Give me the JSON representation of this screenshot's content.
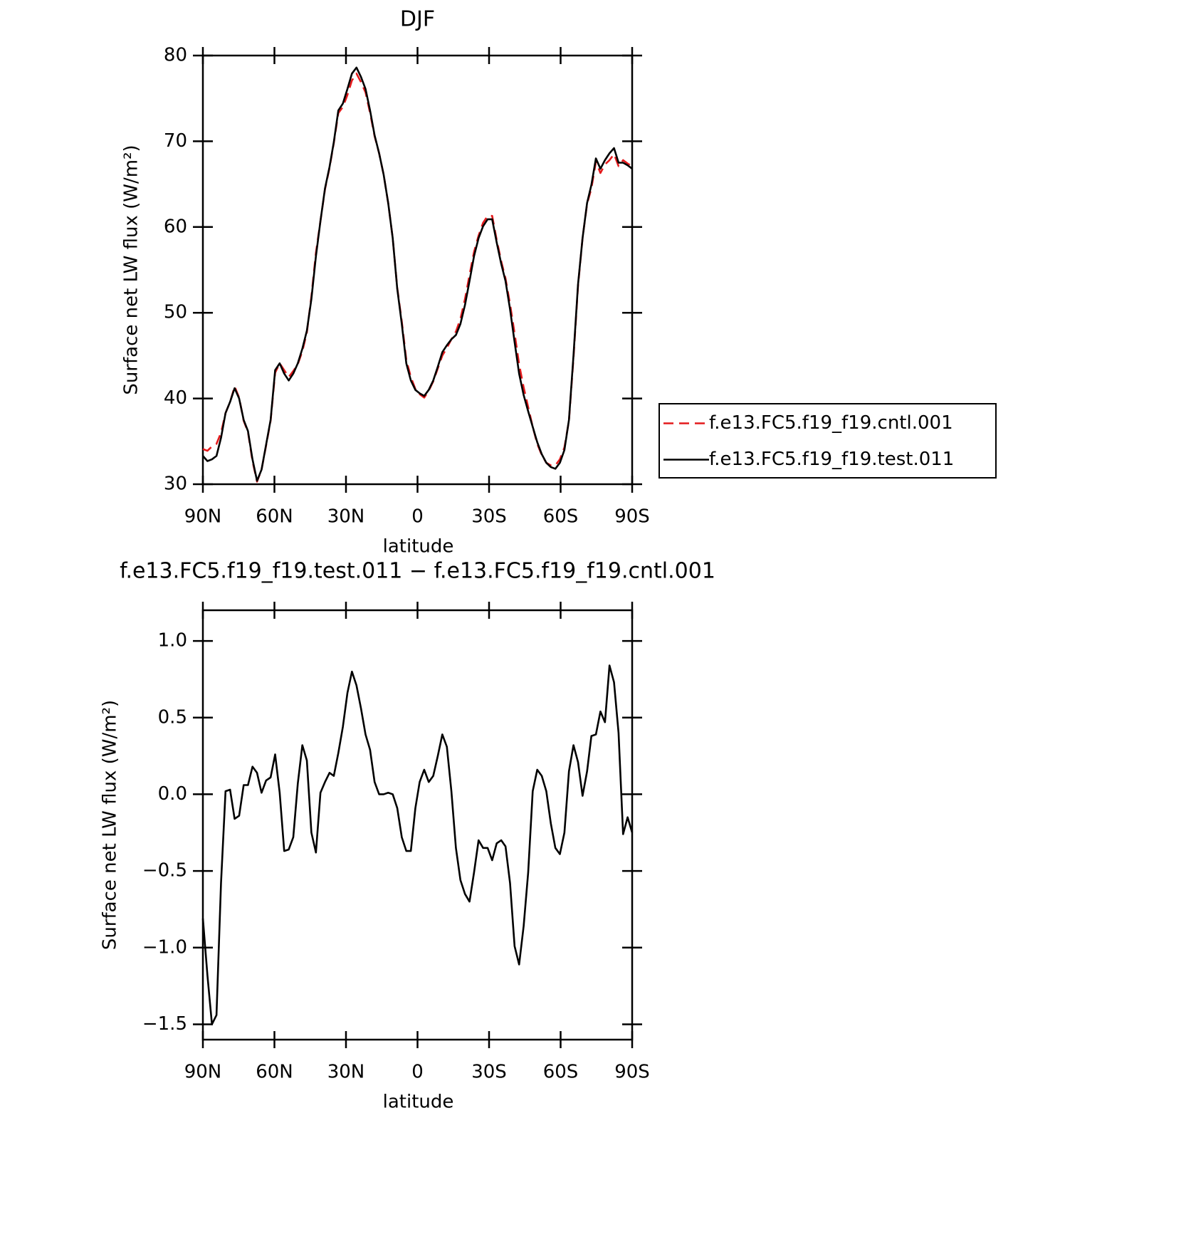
{
  "chart_data": [
    {
      "type": "line",
      "title": "DJF",
      "xlabel": "latitude",
      "ylabel": "Surface net LW flux (W/m²)",
      "x": [
        90.0,
        88.1,
        86.2,
        84.3,
        82.4,
        80.5,
        78.6,
        76.7,
        74.8,
        72.9,
        71.1,
        69.2,
        67.3,
        65.4,
        63.5,
        61.6,
        59.7,
        57.8,
        55.9,
        54.0,
        52.1,
        50.2,
        48.3,
        46.4,
        44.5,
        42.6,
        40.7,
        38.8,
        36.9,
        35.1,
        33.2,
        31.3,
        29.4,
        27.5,
        25.6,
        23.7,
        21.8,
        19.9,
        18.0,
        16.1,
        14.2,
        12.3,
        10.4,
        8.5,
        6.6,
        4.7,
        2.8,
        0.9,
        -0.9,
        -2.8,
        -4.7,
        -6.6,
        -8.5,
        -10.4,
        -12.3,
        -14.2,
        -16.1,
        -18.0,
        -19.9,
        -21.8,
        -23.7,
        -25.6,
        -27.5,
        -29.4,
        -31.3,
        -33.2,
        -35.1,
        -36.9,
        -38.8,
        -40.7,
        -42.6,
        -44.5,
        -46.4,
        -48.3,
        -50.2,
        -52.1,
        -54.0,
        -55.9,
        -57.8,
        -59.7,
        -61.6,
        -63.5,
        -65.4,
        -67.3,
        -69.2,
        -71.1,
        -72.9,
        -74.8,
        -76.7,
        -78.6,
        -80.5,
        -82.4,
        -84.3,
        -86.2,
        -88.1,
        -90.0
      ],
      "series": [
        {
          "name": "f.e13.FC5.f19_f19.cntl.001",
          "color": "#e41a1c",
          "style": "dashed",
          "values": [
            34.1,
            33.9,
            34.4,
            34.7,
            36.0,
            38.3,
            39.6,
            41.4,
            40.1,
            37.4,
            36.1,
            32.7,
            30.3,
            31.7,
            34.5,
            37.4,
            43.0,
            44.1,
            43.3,
            42.5,
            43.2,
            44.0,
            45.5,
            47.7,
            51.9,
            57.0,
            60.7,
            64.4,
            66.9,
            69.8,
            73.3,
            74.0,
            75.4,
            77.1,
            77.9,
            76.9,
            75.7,
            73.3,
            70.6,
            68.6,
            66.1,
            62.8,
            58.7,
            52.9,
            49.0,
            44.5,
            42.5,
            41.1,
            40.5,
            40.1,
            40.9,
            42.0,
            43.5,
            45.0,
            45.9,
            46.9,
            47.8,
            49.3,
            51.6,
            54.4,
            57.1,
            59.0,
            60.5,
            61.3,
            61.3,
            58.5,
            56.0,
            54.0,
            51.0,
            47.6,
            44.0,
            41.3,
            39.0,
            36.7,
            34.7,
            33.4,
            32.5,
            32.2,
            32.2,
            32.9,
            34.3,
            37.4,
            44.7,
            53.1,
            58.7,
            62.7,
            64.5,
            67.6,
            66.3,
            67.3,
            67.8,
            68.5,
            67.1,
            67.8,
            67.4,
            67.1
          ]
        },
        {
          "name": "f.e13.FC5.f19_f19.test.011",
          "color": "#000000",
          "style": "solid",
          "values": [
            33.3,
            32.7,
            32.9,
            33.3,
            35.4,
            38.3,
            39.6,
            41.2,
            40.0,
            37.5,
            36.2,
            32.9,
            30.4,
            31.7,
            34.6,
            37.5,
            43.3,
            44.1,
            42.9,
            42.1,
            42.9,
            44.1,
            45.8,
            47.9,
            51.6,
            56.6,
            60.7,
            64.5,
            67.0,
            69.9,
            73.6,
            74.4,
            76.1,
            77.9,
            78.6,
            77.5,
            76.1,
            73.6,
            70.7,
            68.6,
            66.1,
            62.8,
            58.7,
            52.8,
            48.7,
            44.1,
            42.1,
            41.0,
            40.6,
            40.3,
            41.0,
            42.1,
            43.7,
            45.4,
            46.2,
            46.9,
            47.4,
            48.7,
            50.9,
            53.7,
            56.6,
            58.7,
            60.1,
            60.9,
            60.9,
            58.2,
            55.7,
            53.7,
            50.4,
            46.6,
            42.9,
            40.4,
            38.5,
            36.7,
            34.9,
            33.5,
            32.5,
            32.0,
            31.8,
            32.5,
            34.0,
            37.5,
            45.0,
            53.3,
            58.7,
            62.8,
            64.9,
            68.0,
            66.8,
            67.8,
            68.6,
            69.2,
            67.5,
            67.5,
            67.2,
            66.8
          ]
        }
      ],
      "xlim": [
        90,
        -90
      ],
      "xticks": [
        {
          "value": 90,
          "label": "90N"
        },
        {
          "value": 60,
          "label": "60N"
        },
        {
          "value": 30,
          "label": "30N"
        },
        0,
        {
          "value": -30,
          "label": "30S"
        },
        {
          "value": -60,
          "label": "60S"
        },
        {
          "value": -90,
          "label": "90S"
        }
      ],
      "ylim": [
        30,
        80
      ],
      "yticks": [
        30,
        40,
        50,
        60,
        70,
        80
      ],
      "legend": "right"
    },
    {
      "type": "line",
      "title": "f.e13.FC5.f19_f19.test.011 − f.e13.FC5.f19_f19.cntl.001",
      "xlabel": "latitude",
      "ylabel": "Surface net LW flux (W/m²)",
      "x": [
        90.0,
        88.1,
        86.2,
        84.3,
        82.4,
        80.5,
        78.6,
        76.7,
        74.8,
        72.9,
        71.1,
        69.2,
        67.3,
        65.4,
        63.5,
        61.6,
        59.7,
        57.8,
        55.9,
        54.0,
        52.1,
        50.2,
        48.3,
        46.4,
        44.5,
        42.6,
        40.7,
        38.8,
        36.9,
        35.1,
        33.2,
        31.3,
        29.4,
        27.5,
        25.6,
        23.7,
        21.8,
        19.9,
        18.0,
        16.1,
        14.2,
        12.3,
        10.4,
        8.5,
        6.6,
        4.7,
        2.8,
        0.9,
        -0.9,
        -2.8,
        -4.7,
        -6.6,
        -8.5,
        -10.4,
        -12.3,
        -14.2,
        -16.1,
        -18.0,
        -19.9,
        -21.8,
        -23.7,
        -25.6,
        -27.5,
        -29.4,
        -31.3,
        -33.2,
        -35.1,
        -36.9,
        -38.8,
        -40.7,
        -42.6,
        -44.5,
        -46.4,
        -48.3,
        -50.2,
        -52.1,
        -54.0,
        -55.9,
        -57.8,
        -59.7,
        -61.6,
        -63.5,
        -65.4,
        -67.3,
        -69.2,
        -71.1,
        -72.9,
        -74.8,
        -76.7,
        -78.6,
        -80.5,
        -82.4,
        -84.3,
        -86.2,
        -88.1,
        -90.0
      ],
      "values": [
        -0.81,
        -1.18,
        -1.5,
        -1.44,
        -0.58,
        0.02,
        0.03,
        -0.16,
        -0.14,
        0.06,
        0.06,
        0.18,
        0.14,
        0.01,
        0.09,
        0.11,
        0.26,
        0.01,
        -0.37,
        -0.36,
        -0.28,
        0.07,
        0.32,
        0.22,
        -0.25,
        -0.38,
        0.01,
        0.08,
        0.14,
        0.12,
        0.27,
        0.44,
        0.66,
        0.8,
        0.71,
        0.56,
        0.39,
        0.29,
        0.08,
        0.0,
        0.0,
        0.01,
        0.0,
        -0.09,
        -0.28,
        -0.37,
        -0.37,
        -0.09,
        0.08,
        0.16,
        0.08,
        0.12,
        0.25,
        0.39,
        0.31,
        0.02,
        -0.35,
        -0.56,
        -0.65,
        -0.7,
        -0.51,
        -0.3,
        -0.35,
        -0.35,
        -0.43,
        -0.32,
        -0.3,
        -0.34,
        -0.58,
        -0.99,
        -1.11,
        -0.86,
        -0.51,
        0.02,
        0.16,
        0.12,
        0.02,
        -0.19,
        -0.35,
        -0.39,
        -0.25,
        0.15,
        0.32,
        0.21,
        -0.01,
        0.15,
        0.38,
        0.39,
        0.54,
        0.47,
        0.84,
        0.73,
        0.4,
        -0.26,
        -0.15,
        -0.25
      ],
      "color": "#000000",
      "xlim": [
        90,
        -90
      ],
      "xticks": [
        {
          "value": 90,
          "label": "90N"
        },
        {
          "value": 60,
          "label": "60N"
        },
        {
          "value": 30,
          "label": "30N"
        },
        0,
        {
          "value": -30,
          "label": "30S"
        },
        {
          "value": -60,
          "label": "60S"
        },
        {
          "value": -90,
          "label": "90S"
        }
      ],
      "ylim": [
        -1.6,
        1.2
      ],
      "yticks": [
        {
          "value": -1.5,
          "label": "−1.5"
        },
        {
          "value": -1,
          "label": "−1.0"
        },
        {
          "value": -0.5,
          "label": "−0.5"
        },
        {
          "value": 0,
          "label": "0.0"
        },
        0.5,
        {
          "value": 1,
          "label": "1.0"
        }
      ]
    }
  ]
}
